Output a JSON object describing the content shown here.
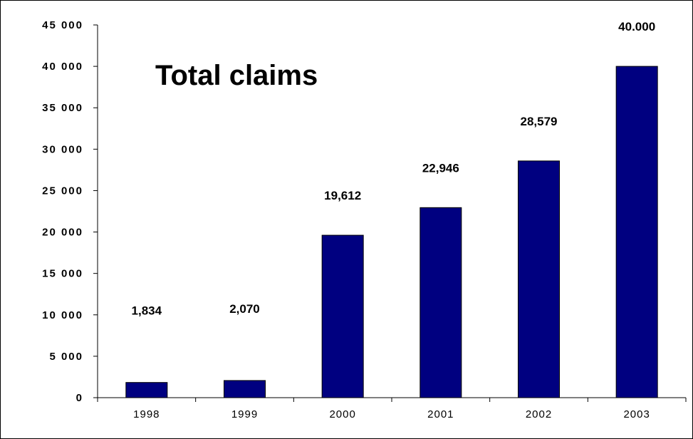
{
  "chart_data": {
    "type": "bar",
    "title": "Total claims",
    "categories": [
      "1998",
      "1999",
      "2000",
      "2001",
      "2002",
      "2003"
    ],
    "values": [
      1834,
      2070,
      19612,
      22946,
      28579,
      40000
    ],
    "data_labels": [
      "1,834",
      "2,070",
      "19,612",
      "22,946",
      "28,579",
      "40.000"
    ],
    "ylim": [
      0,
      45000
    ],
    "yticks": [
      0,
      5000,
      10000,
      15000,
      20000,
      25000,
      30000,
      35000,
      40000,
      45000
    ],
    "ytick_labels": [
      "0",
      "5 000",
      "10 000",
      "15 000",
      "20 000",
      "25 000",
      "30 000",
      "35 000",
      "40 000",
      "45 000"
    ],
    "xlabel": "",
    "ylabel": "",
    "grid": false,
    "legend": "none",
    "bar_color": "#000080"
  }
}
